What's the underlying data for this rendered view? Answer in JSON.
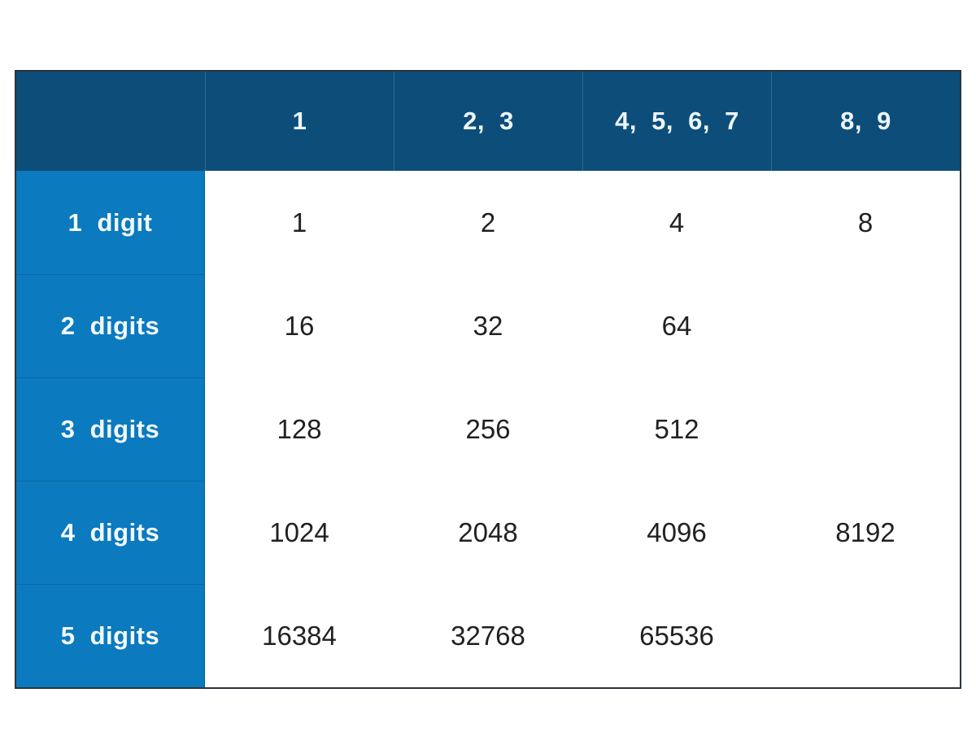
{
  "figure": {
    "description": "Table of powers of two grouped by number of digits (rows) and leading digit group (columns)",
    "colors": {
      "header_bg": "#0d4d79",
      "label_bg": "#0b7abf",
      "stripe_gray": "#e4e5e8",
      "row_white": "#ffffff",
      "border": "#2b353d",
      "header_text": "#ecf5fb",
      "data_text": "#212121"
    }
  },
  "chart_data": {
    "type": "table",
    "columns": [
      "",
      "1",
      "2, 3",
      "4, 5, 6, 7",
      "8, 9"
    ],
    "rows": [
      [
        "1 digit",
        "1",
        "2",
        "4",
        "8"
      ],
      [
        "2 digits",
        "16",
        "32",
        "64",
        ""
      ],
      [
        "3 digits",
        "128",
        "256",
        "512",
        ""
      ],
      [
        "4 digits",
        "1024",
        "2048",
        "4096",
        "8192"
      ],
      [
        "5 digits",
        "16384",
        "32768",
        "65536",
        ""
      ]
    ],
    "title": "",
    "legend": "none",
    "grid": "row-striping"
  }
}
